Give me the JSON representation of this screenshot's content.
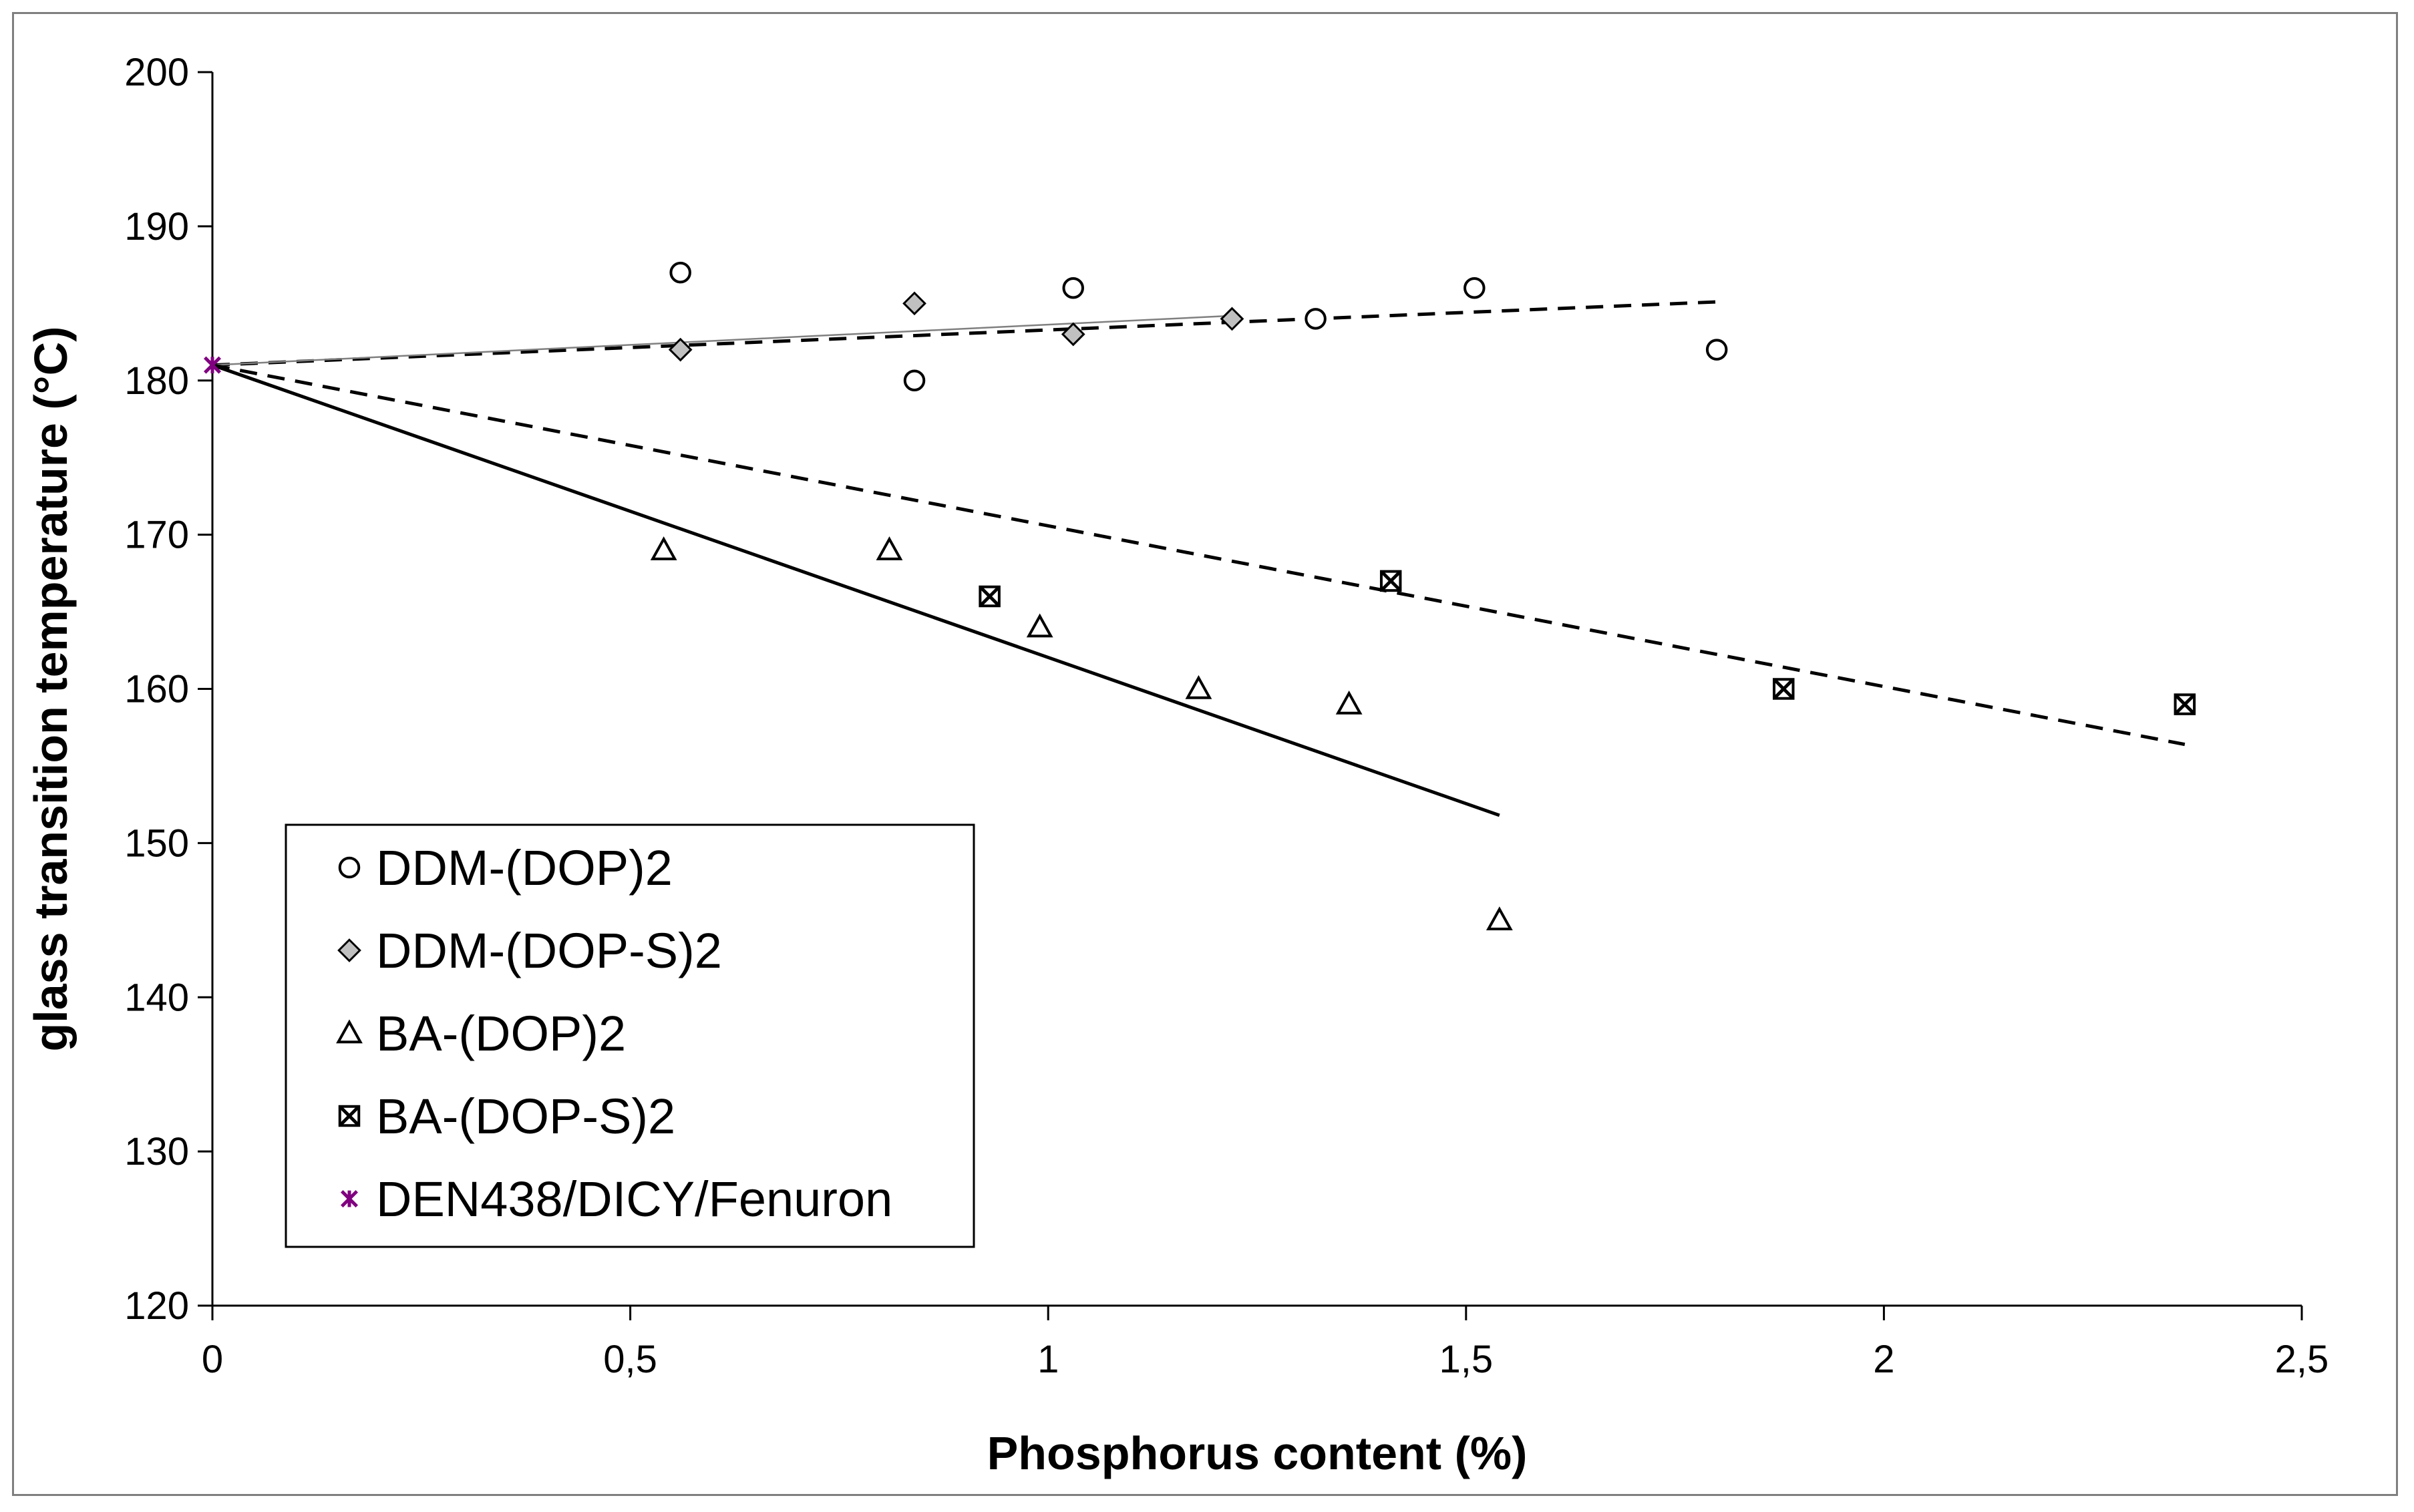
{
  "chart_data": {
    "type": "scatter",
    "title": "",
    "xlabel": "Phosphorus content (%)",
    "ylabel": "glass transition temperature (°C)",
    "xlim": [
      0,
      2.5
    ],
    "ylim": [
      120,
      200
    ],
    "x_ticks": [
      0,
      0.5,
      1,
      1.5,
      2,
      2.5
    ],
    "x_tick_labels": [
      "0",
      "0,5",
      "1",
      "1,5",
      "2",
      "2,5"
    ],
    "y_ticks": [
      120,
      130,
      140,
      150,
      160,
      170,
      180,
      190,
      200
    ],
    "y_tick_labels": [
      "120",
      "130",
      "140",
      "150",
      "160",
      "170",
      "180",
      "190",
      "200"
    ],
    "grid": false,
    "legend_position": "bottom-left",
    "series": [
      {
        "name": "DDM-(DOP)2",
        "marker": "circle",
        "color": "#000000",
        "fill": "#ffffff",
        "points": [
          [
            0.56,
            187
          ],
          [
            0.84,
            180
          ],
          [
            1.03,
            186
          ],
          [
            1.32,
            184
          ],
          [
            1.51,
            186
          ],
          [
            1.8,
            182
          ]
        ]
      },
      {
        "name": "DDM-(DOP-S)2",
        "marker": "diamond",
        "color": "#000000",
        "fill": "#c0c0c0",
        "points": [
          [
            0.56,
            182
          ],
          [
            0.84,
            185
          ],
          [
            1.03,
            183
          ],
          [
            1.22,
            184
          ]
        ]
      },
      {
        "name": "BA-(DOP)2",
        "marker": "triangle",
        "color": "#000000",
        "fill": "#ffffff",
        "points": [
          [
            0.54,
            169
          ],
          [
            0.81,
            169
          ],
          [
            0.99,
            164
          ],
          [
            1.18,
            160
          ],
          [
            1.36,
            159
          ],
          [
            1.54,
            145
          ]
        ]
      },
      {
        "name": "BA-(DOP-S)2",
        "marker": "boxed-x",
        "color": "#000000",
        "fill": "#ffffff",
        "points": [
          [
            0.93,
            166
          ],
          [
            1.41,
            167
          ],
          [
            1.88,
            160
          ],
          [
            2.36,
            159
          ]
        ]
      },
      {
        "name": "DEN438/DICY/Fenuron",
        "marker": "star",
        "color": "#800080",
        "fill": "#800080",
        "points": [
          [
            0,
            181
          ]
        ]
      }
    ],
    "trendlines": [
      {
        "series": "DDM-(DOP)2",
        "style": "dashed",
        "color": "#000000",
        "from": [
          0,
          181
        ],
        "to": [
          1.8,
          185.1
        ]
      },
      {
        "series": "DDM-(DOP-S)2",
        "style": "solid-thin",
        "color": "#808080",
        "from": [
          0,
          181
        ],
        "to": [
          1.22,
          184.2
        ]
      },
      {
        "series": "BA-(DOP)2",
        "style": "solid",
        "color": "#000000",
        "from": [
          0,
          181
        ],
        "to": [
          1.54,
          151.8
        ]
      },
      {
        "series": "BA-(DOP-S)2",
        "style": "dashed",
        "color": "#000000",
        "from": [
          0,
          181
        ],
        "to": [
          2.36,
          156.4
        ]
      }
    ]
  }
}
